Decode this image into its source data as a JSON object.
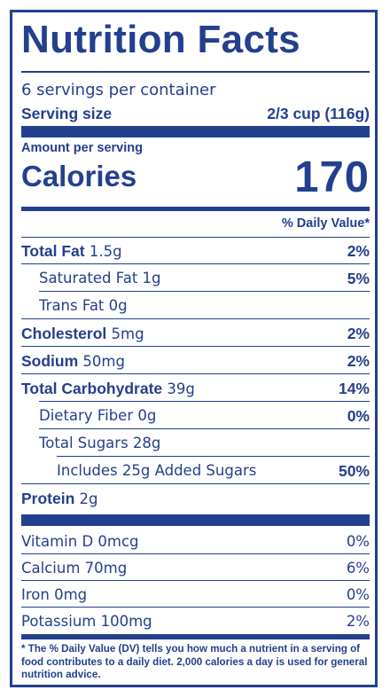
{
  "title": "Nutrition Facts",
  "servings_per_container": "6 servings per container",
  "serving_size_label": "Serving size",
  "serving_size_value": "2/3 cup (116g)",
  "amount_per_serving": "Amount per serving",
  "calories_label": "Calories",
  "calories_value": "170",
  "daily_value_header": "% Daily Value*",
  "nutrients": [
    {
      "name": "Total Fat",
      "amount": "1.5g",
      "dv": "2%"
    },
    {
      "name": "Saturated Fat 1g",
      "amount": "",
      "dv": "5%"
    },
    {
      "name": "Trans Fat 0g",
      "amount": "",
      "dv": ""
    },
    {
      "name": "Cholesterol",
      "amount": "5mg",
      "dv": "2%"
    },
    {
      "name": "Sodium",
      "amount": "50mg",
      "dv": "2%"
    },
    {
      "name": "Total Carbohydrate",
      "amount": "39g",
      "dv": "14%"
    },
    {
      "name": "Dietary Fiber 0g",
      "amount": "",
      "dv": "0%"
    },
    {
      "name": "Total Sugars 28g",
      "amount": "",
      "dv": ""
    },
    {
      "name": "Includes 25g Added Sugars",
      "amount": "",
      "dv": "50%"
    },
    {
      "name": "Protein",
      "amount": "2g",
      "dv": ""
    }
  ],
  "vitamins": [
    {
      "name": "Vitamin D 0mcg",
      "dv": "0%"
    },
    {
      "name": "Calcium 70mg",
      "dv": "6%"
    },
    {
      "name": "Iron 0mg",
      "dv": "0%"
    },
    {
      "name": "Potassium 100mg",
      "dv": "2%"
    }
  ],
  "footnote": "* The % Daily Value (DV) tells you how much a nutrient in a serving of food contributes to a daily diet. 2,000 calories a day is used for general nutrition advice.",
  "colors": {
    "ink": "#23408e",
    "background": "#ffffff"
  }
}
